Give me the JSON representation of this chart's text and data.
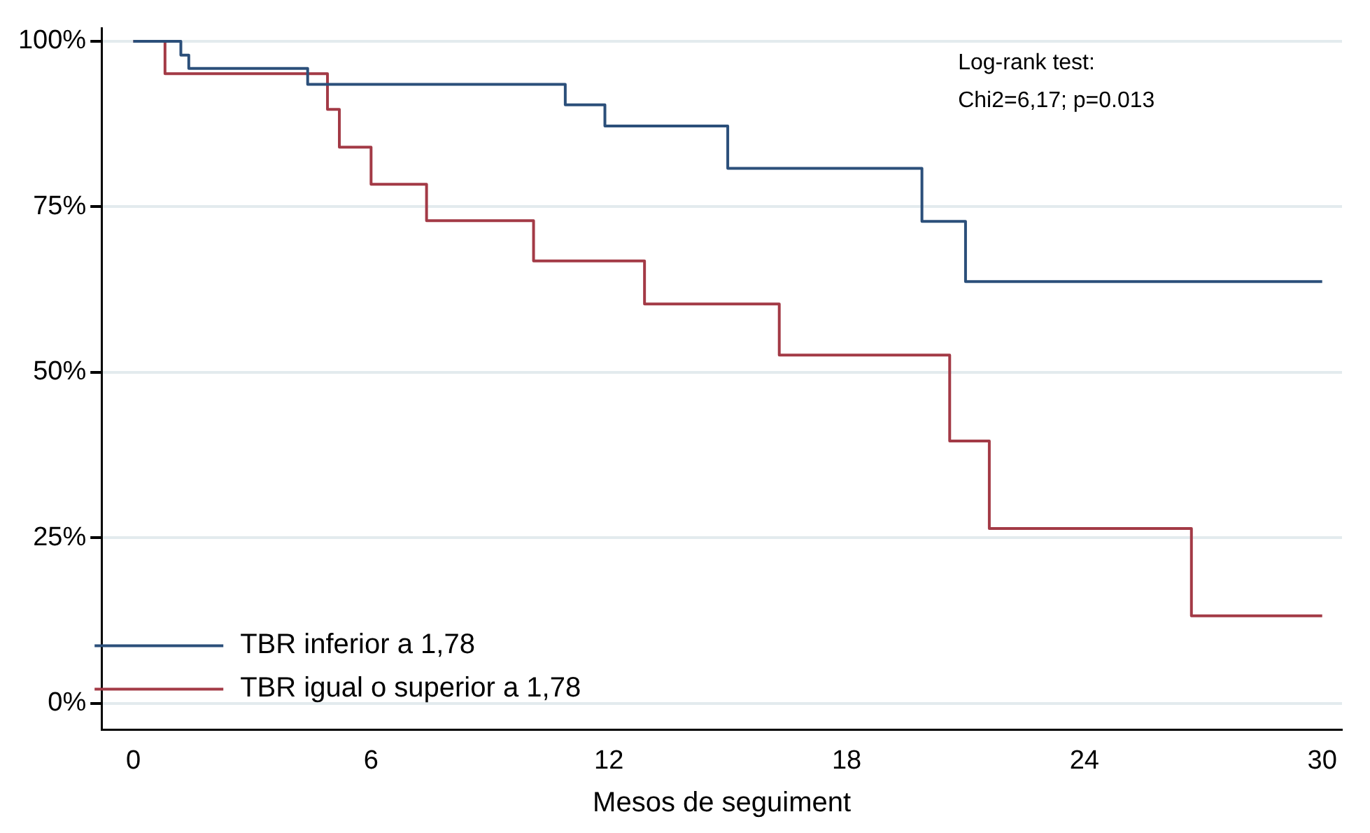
{
  "chart_data": {
    "type": "step",
    "xlabel": "Mesos de seguiment",
    "annotations": [
      "Log-rank test:",
      "Chi2=6,17; p=0.013"
    ],
    "series": [
      {
        "name": "TBR inferior a 1,78",
        "color": "#2b4f7a",
        "x": [
          0,
          1.2,
          1.4,
          4.4,
          10.9,
          11.9,
          15.0,
          19.9,
          21.0,
          30
        ],
        "values": [
          100,
          97.9,
          95.9,
          93.5,
          90.4,
          87.2,
          80.8,
          72.8,
          63.7,
          63.7
        ]
      },
      {
        "name": "TBR igual o superior a 1,78",
        "color": "#a33a46",
        "x": [
          0,
          0.8,
          4.9,
          5.2,
          6.0,
          7.4,
          10.1,
          12.9,
          16.3,
          20.6,
          21.6,
          26.7,
          30
        ],
        "values": [
          100,
          95.1,
          89.7,
          84.0,
          78.4,
          72.9,
          66.8,
          60.3,
          52.6,
          39.6,
          26.4,
          13.2,
          13.2
        ]
      }
    ],
    "xlim": [
      -0.8,
      30.5
    ],
    "xticks": [
      0,
      6,
      12,
      18,
      24,
      30
    ],
    "ylim": [
      -4,
      102
    ],
    "yticks": [
      {
        "value": 0,
        "label": "0%"
      },
      {
        "value": 25,
        "label": "25%"
      },
      {
        "value": 50,
        "label": "50%"
      },
      {
        "value": 75,
        "label": "75%"
      },
      {
        "value": 100,
        "label": "100%"
      }
    ],
    "grid": "y",
    "legend": "bottom left",
    "line_style": "solid",
    "marker": "none"
  }
}
